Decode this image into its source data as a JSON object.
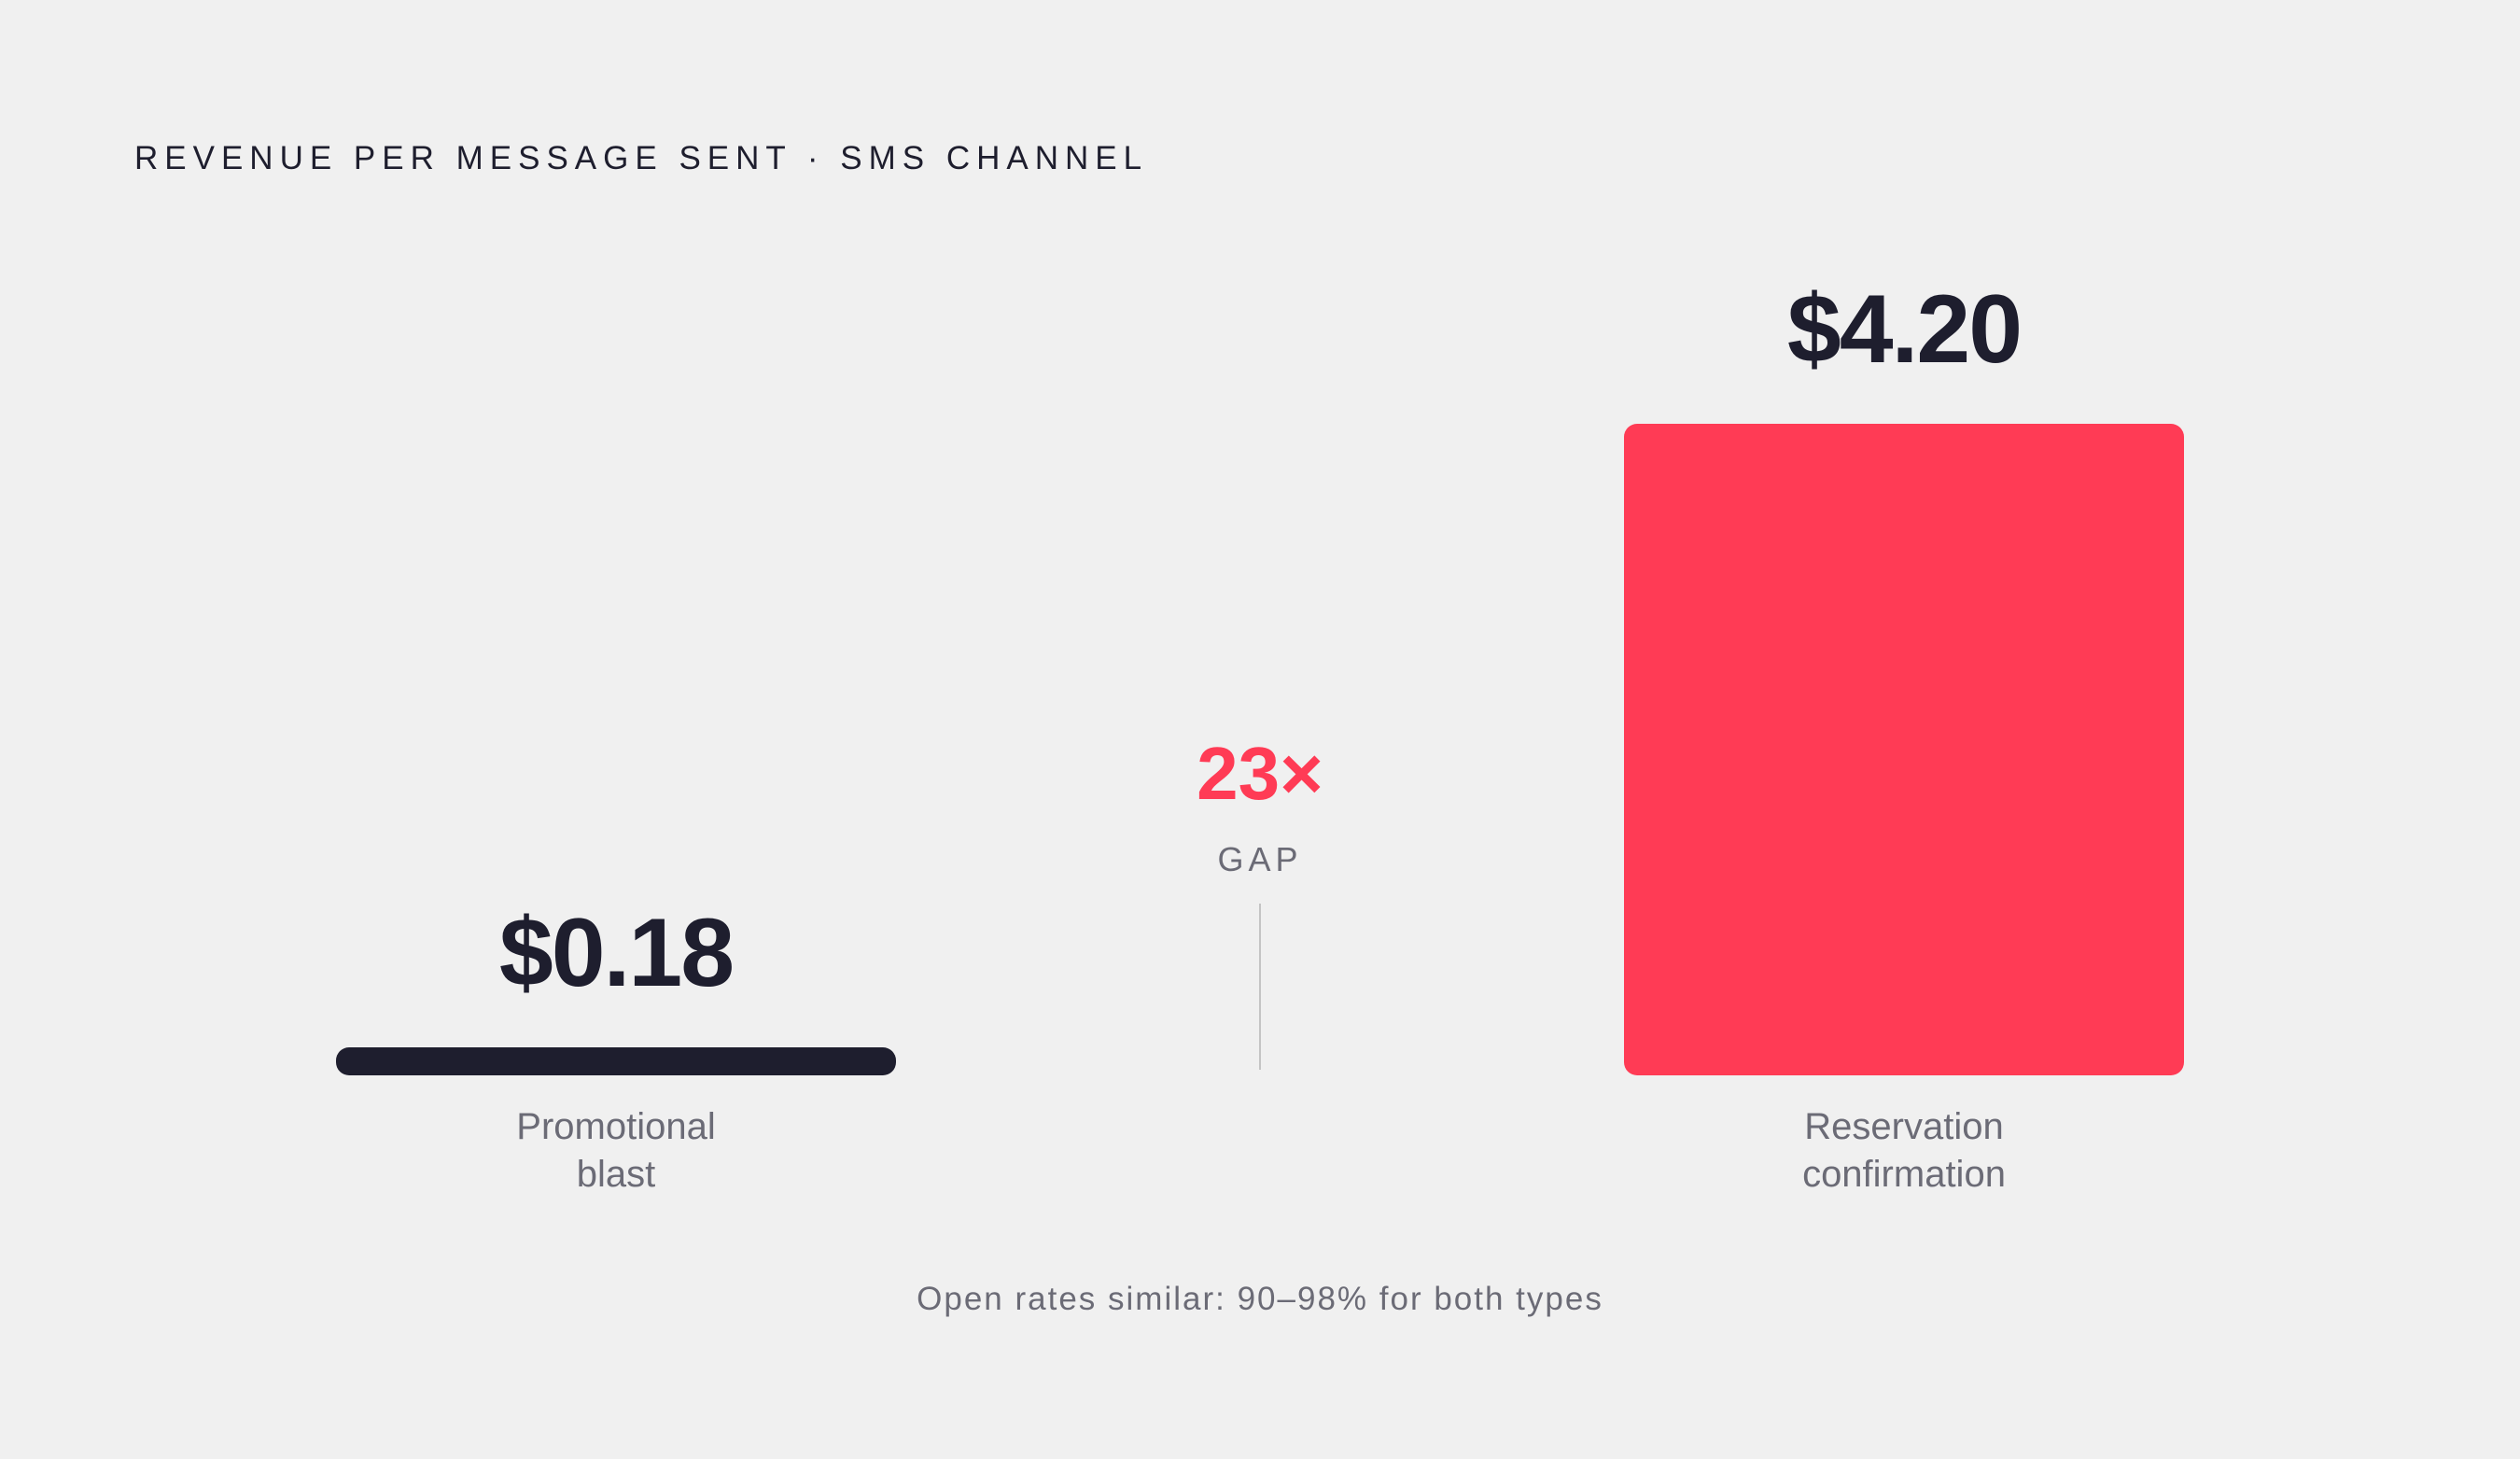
{
  "title": "REVENUE PER MESSAGE SENT · SMS CHANNEL",
  "colors": {
    "background": "#f0f0f0",
    "promotional": "#1e1e2e",
    "reservation": "#ff3b55",
    "accent": "#ff3b55",
    "text_dark": "#1e1e2e",
    "text_muted": "#6b6b76"
  },
  "chart_data": {
    "type": "bar",
    "title": "REVENUE PER MESSAGE SENT · SMS CHANNEL",
    "categories": [
      "Promotional blast",
      "Reservation confirmation"
    ],
    "category_lines": [
      [
        "Promotional",
        "blast"
      ],
      [
        "Reservation",
        "confirmation"
      ]
    ],
    "values": [
      0.18,
      4.2
    ],
    "value_labels": [
      "$0.18",
      "$4.20"
    ],
    "ylim": [
      0,
      4.2
    ],
    "grid": false,
    "xlabel": "",
    "ylabel": ""
  },
  "gap": {
    "value": "23×",
    "label": "GAP"
  },
  "footnote": "Open rates similar: 90–98% for both types"
}
